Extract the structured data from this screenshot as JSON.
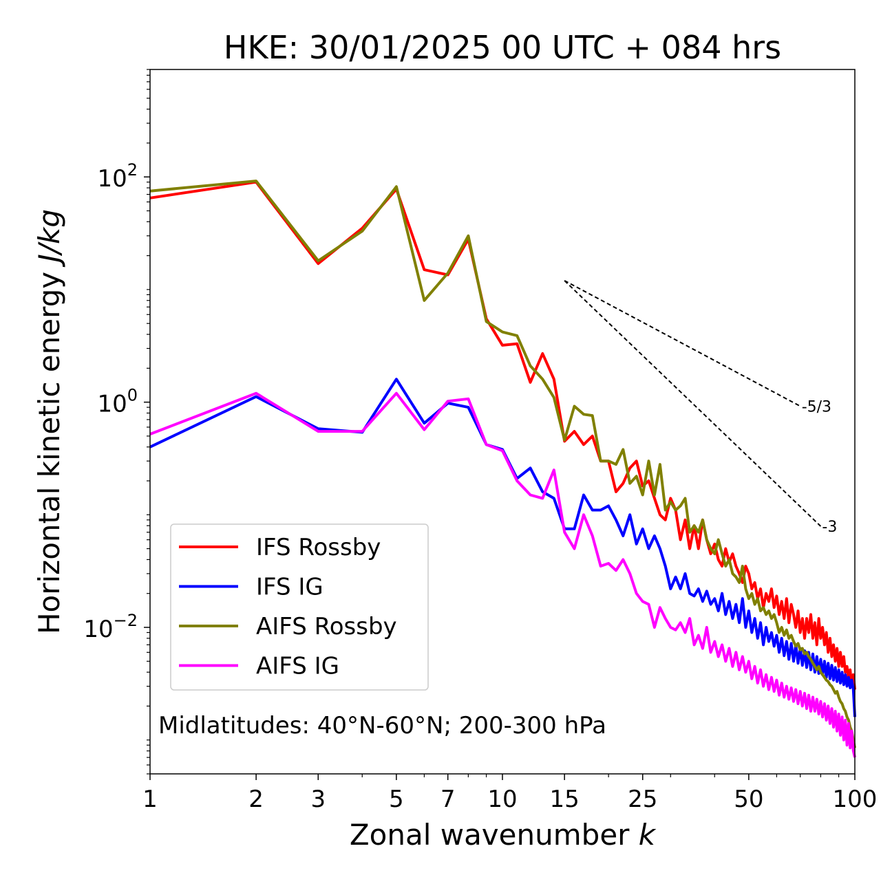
{
  "chart_data": {
    "type": "line",
    "title": "HKE: 30/01/2025 00 UTC + 084 hrs",
    "xlabel": "Zonal wavenumber",
    "xlabel_var": "k",
    "ylabel": "Horizontal kinetic energy",
    "ylabel_unit": "J/kg",
    "x_scale": "log",
    "y_scale": "log",
    "xlim": [
      1,
      100
    ],
    "ylim": [
      0.0005,
      900
    ],
    "x_ticks": [
      {
        "value": 1,
        "label": "1"
      },
      {
        "value": 2,
        "label": "2"
      },
      {
        "value": 3,
        "label": "3"
      },
      {
        "value": 5,
        "label": "5"
      },
      {
        "value": 7,
        "label": "7"
      },
      {
        "value": 10,
        "label": "10"
      },
      {
        "value": 15,
        "label": "15"
      },
      {
        "value": 25,
        "label": "25"
      },
      {
        "value": 50,
        "label": "50"
      },
      {
        "value": 100,
        "label": "100"
      }
    ],
    "y_ticks": [
      {
        "value": 100,
        "base": "10",
        "exp": "2"
      },
      {
        "value": 1,
        "base": "10",
        "exp": "0"
      },
      {
        "value": 0.01,
        "base": "10",
        "exp": "−2"
      }
    ],
    "annotation": "Midlatitudes: 40°N-60°N; 200-300 hPa",
    "legend_position": "lower-left",
    "reference_slopes": [
      {
        "label": "-5/3",
        "x_start": 15,
        "y_start": 12,
        "x_end": 70,
        "slope": -1.6667
      },
      {
        "label": "-3",
        "x_start": 15,
        "y_start": 12,
        "x_end": 80,
        "slope": -3
      }
    ],
    "series": [
      {
        "name": "IFS Rossby",
        "color": "#ff0000",
        "values": [
          65,
          90,
          17,
          35,
          78,
          15,
          13.5,
          28,
          5.5,
          3.2,
          3.3,
          1.5,
          2.7,
          1.6,
          0.45,
          0.55,
          0.42,
          0.5,
          0.3,
          0.3,
          0.16,
          0.19,
          0.26,
          0.3,
          0.18,
          0.2,
          0.14,
          0.1,
          0.09,
          0.14,
          0.11,
          0.06,
          0.09,
          0.05,
          0.08,
          0.05,
          0.09,
          0.06,
          0.045,
          0.055,
          0.04,
          0.035,
          0.05,
          0.038,
          0.045,
          0.035,
          0.03,
          0.025,
          0.035,
          0.03,
          0.022,
          0.025,
          0.018,
          0.022,
          0.015,
          0.02,
          0.017,
          0.022,
          0.015,
          0.019,
          0.013,
          0.017,
          0.012,
          0.018,
          0.011,
          0.016,
          0.013,
          0.01,
          0.014,
          0.009,
          0.012,
          0.008,
          0.012,
          0.009,
          0.013,
          0.008,
          0.011,
          0.007,
          0.012,
          0.008,
          0.01,
          0.007,
          0.009,
          0.006,
          0.008,
          0.0055,
          0.007,
          0.005,
          0.0065,
          0.0045,
          0.006,
          0.0045,
          0.0055,
          0.004,
          0.0045,
          0.0035,
          0.0042,
          0.003,
          0.0038,
          0.0028
        ]
      },
      {
        "name": "IFS IG",
        "color": "#0000ff",
        "values": [
          0.4,
          1.12,
          0.58,
          0.54,
          1.6,
          0.65,
          0.98,
          0.9,
          0.42,
          0.38,
          0.21,
          0.26,
          0.16,
          0.14,
          0.075,
          0.075,
          0.15,
          0.11,
          0.11,
          0.12,
          0.09,
          0.065,
          0.1,
          0.055,
          0.075,
          0.05,
          0.065,
          0.05,
          0.035,
          0.022,
          0.028,
          0.022,
          0.03,
          0.02,
          0.019,
          0.022,
          0.017,
          0.021,
          0.016,
          0.018,
          0.014,
          0.02,
          0.013,
          0.017,
          0.012,
          0.016,
          0.011,
          0.018,
          0.01,
          0.014,
          0.009,
          0.012,
          0.008,
          0.011,
          0.007,
          0.01,
          0.0075,
          0.009,
          0.0068,
          0.0085,
          0.006,
          0.008,
          0.0056,
          0.0075,
          0.0052,
          0.0072,
          0.005,
          0.007,
          0.0048,
          0.0065,
          0.0046,
          0.0062,
          0.0044,
          0.006,
          0.0042,
          0.0058,
          0.004,
          0.0055,
          0.0039,
          0.0052,
          0.0038,
          0.005,
          0.0036,
          0.0048,
          0.0035,
          0.0046,
          0.0034,
          0.0044,
          0.0033,
          0.0042,
          0.0032,
          0.004,
          0.0031,
          0.0038,
          0.003,
          0.0036,
          0.0029,
          0.0034,
          0.0028,
          0.0016
        ]
      },
      {
        "name": "AIFS Rossby",
        "color": "#808000",
        "values": [
          75,
          92,
          18,
          33,
          82,
          8,
          14,
          30,
          5.2,
          4.2,
          3.9,
          2.1,
          1.6,
          1.1,
          0.46,
          0.92,
          0.78,
          0.76,
          0.3,
          0.3,
          0.28,
          0.38,
          0.19,
          0.22,
          0.15,
          0.3,
          0.15,
          0.28,
          0.11,
          0.13,
          0.11,
          0.12,
          0.14,
          0.07,
          0.08,
          0.07,
          0.09,
          0.06,
          0.05,
          0.045,
          0.06,
          0.045,
          0.035,
          0.04,
          0.03,
          0.028,
          0.025,
          0.035,
          0.022,
          0.018,
          0.02,
          0.016,
          0.018,
          0.014,
          0.015,
          0.013,
          0.014,
          0.012,
          0.013,
          0.011,
          0.009,
          0.01,
          0.0085,
          0.0095,
          0.008,
          0.0085,
          0.0075,
          0.0068,
          0.0072,
          0.0063,
          0.0065,
          0.0058,
          0.006,
          0.0055,
          0.0052,
          0.0048,
          0.0045,
          0.0042,
          0.0045,
          0.004,
          0.0038,
          0.0036,
          0.0034,
          0.0033,
          0.0031,
          0.003,
          0.0028,
          0.0026,
          0.0027,
          0.0024,
          0.0022,
          0.0021,
          0.0019,
          0.0018,
          0.0016,
          0.0015,
          0.0013,
          0.0012,
          0.001,
          0.00085
        ]
      },
      {
        "name": "AIFS IG",
        "color": "#ff00ff",
        "values": [
          0.52,
          1.2,
          0.55,
          0.55,
          1.2,
          0.57,
          1.02,
          1.07,
          0.42,
          0.37,
          0.2,
          0.15,
          0.14,
          0.25,
          0.07,
          0.05,
          0.1,
          0.065,
          0.035,
          0.037,
          0.032,
          0.04,
          0.03,
          0.02,
          0.017,
          0.016,
          0.01,
          0.015,
          0.012,
          0.01,
          0.0095,
          0.011,
          0.009,
          0.012,
          0.007,
          0.0085,
          0.0065,
          0.01,
          0.006,
          0.0075,
          0.0055,
          0.007,
          0.005,
          0.0065,
          0.0045,
          0.006,
          0.0042,
          0.0055,
          0.004,
          0.005,
          0.0035,
          0.0045,
          0.0032,
          0.0042,
          0.003,
          0.0038,
          0.0028,
          0.0036,
          0.0027,
          0.0034,
          0.0025,
          0.0032,
          0.0024,
          0.003,
          0.0023,
          0.0029,
          0.0022,
          0.0028,
          0.0021,
          0.0027,
          0.002,
          0.0026,
          0.0019,
          0.0025,
          0.0018,
          0.0024,
          0.0018,
          0.0023,
          0.0017,
          0.0022,
          0.0016,
          0.0021,
          0.0015,
          0.002,
          0.0014,
          0.0019,
          0.0013,
          0.0018,
          0.0012,
          0.0017,
          0.0011,
          0.0016,
          0.001,
          0.0015,
          0.0009,
          0.0014,
          0.00085,
          0.0012,
          0.0008,
          0.0007
        ]
      }
    ]
  }
}
